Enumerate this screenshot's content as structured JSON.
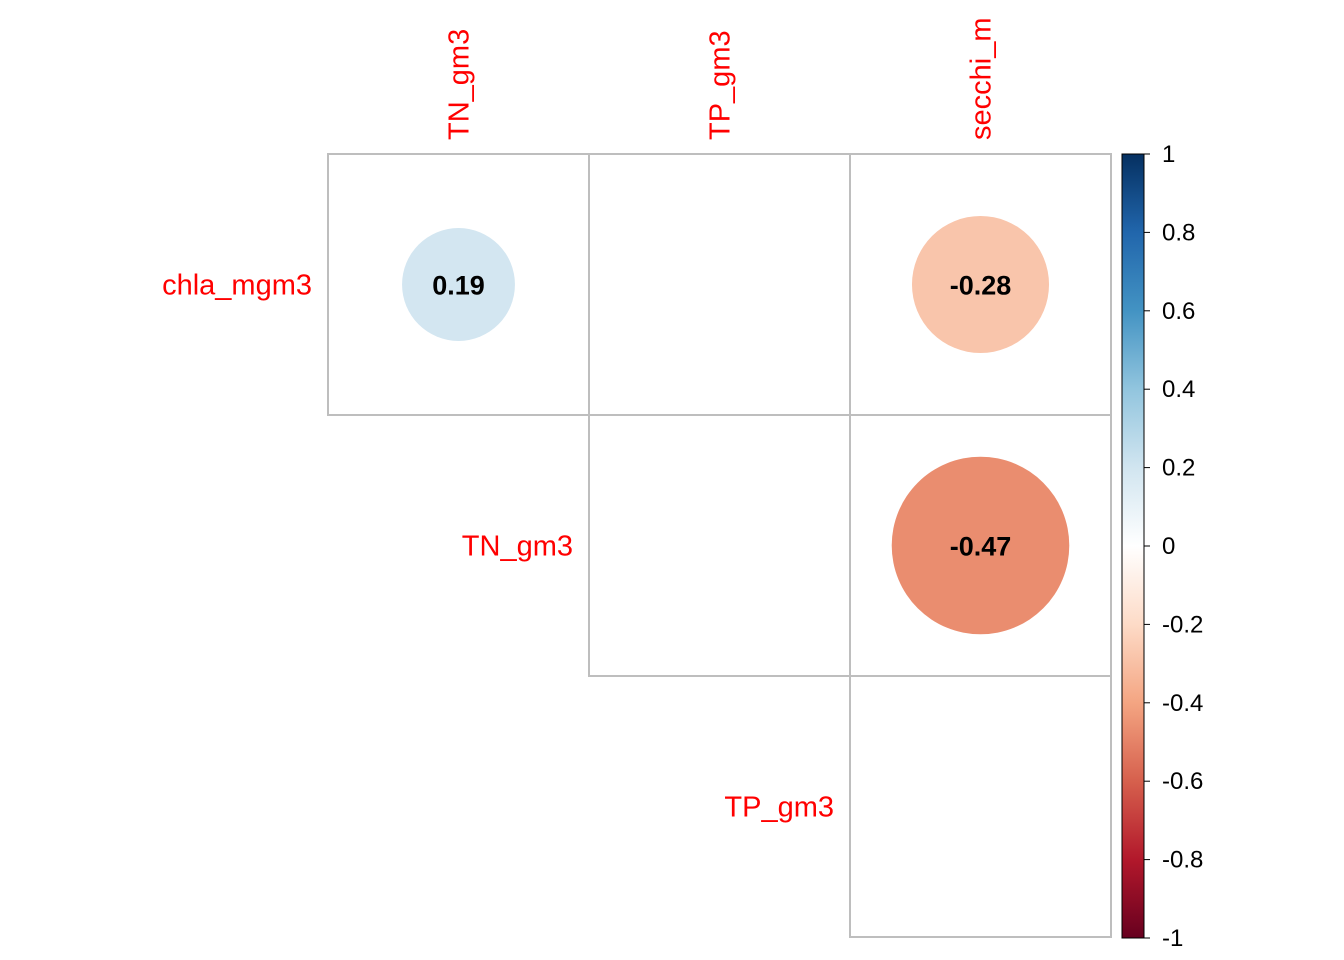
{
  "chart_data": {
    "type": "heatmap",
    "subtype": "correlation-upper-triangle-circles",
    "rows": [
      "chla_mgm3",
      "TN_gm3",
      "TP_gm3"
    ],
    "columns": [
      "TN_gm3",
      "TP_gm3",
      "secchi_m"
    ],
    "cells": [
      {
        "row": 0,
        "col": 0,
        "value": 0.19,
        "label": "0.19"
      },
      {
        "row": 0,
        "col": 2,
        "value": -0.28,
        "label": "-0.28"
      },
      {
        "row": 1,
        "col": 2,
        "value": -0.47,
        "label": "-0.47"
      }
    ],
    "color_scale": {
      "min": -1,
      "max": 1,
      "ticks": [
        "1",
        "0.8",
        "0.6",
        "0.4",
        "0.2",
        "0",
        "-0.2",
        "-0.4",
        "-0.6",
        "-0.8",
        "-1"
      ],
      "stops": [
        {
          "v": -1.0,
          "color": "#67001F"
        },
        {
          "v": -0.8,
          "color": "#B2182B"
        },
        {
          "v": -0.6,
          "color": "#D6604D"
        },
        {
          "v": -0.4,
          "color": "#F4A582"
        },
        {
          "v": -0.2,
          "color": "#FDDBC7"
        },
        {
          "v": 0.0,
          "color": "#FFFFFF"
        },
        {
          "v": 0.2,
          "color": "#D1E5F0"
        },
        {
          "v": 0.4,
          "color": "#92C5DE"
        },
        {
          "v": 0.6,
          "color": "#4393C3"
        },
        {
          "v": 0.8,
          "color": "#2166AC"
        },
        {
          "v": 1.0,
          "color": "#053061"
        }
      ]
    },
    "label_color": "#FF0000",
    "grid_color": "#BEBEBE",
    "cell_text_color": "#000000",
    "legend_placement": "right"
  }
}
